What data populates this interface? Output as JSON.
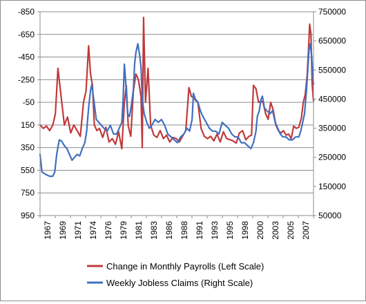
{
  "chart_data": {
    "type": "line",
    "title": "",
    "xlabel": "",
    "x_tick_labels": [
      "1967",
      "1969",
      "1971",
      "1974",
      "1976",
      "1979",
      "1981",
      "1983",
      "1986",
      "1988",
      "1991",
      "1993",
      "1995",
      "1998",
      "2000",
      "2003",
      "2005",
      "2007"
    ],
    "x_range": [
      1967.0,
      2009.8
    ],
    "left_axis": {
      "inverted": true,
      "range": [
        -850,
        950
      ],
      "ticks": [
        -850,
        -650,
        -450,
        -250,
        -50,
        150,
        350,
        550,
        750,
        950
      ],
      "tick_labels": [
        "-850",
        "-650",
        "-450",
        "-250",
        "-50",
        "150",
        "350",
        "550",
        "750",
        "950"
      ]
    },
    "right_axis": {
      "inverted": false,
      "range": [
        50000,
        750000
      ],
      "ticks": [
        750000,
        650000,
        550000,
        450000,
        350000,
        250000,
        150000,
        50000
      ],
      "tick_labels": [
        "750000",
        "650000",
        "550000",
        "450000",
        "350000",
        "250000",
        "150000",
        "50000"
      ]
    },
    "grid": "horizontal",
    "legend_position": "bottom",
    "series": [
      {
        "name": "Change in Monthly Payrolls (Left Scale)",
        "axis": "left",
        "color": "#c0393b",
        "x": [
          1967.0,
          1967.5,
          1968.0,
          1968.5,
          1969.0,
          1969.4,
          1969.8,
          1970.3,
          1970.8,
          1971.3,
          1971.8,
          1972.3,
          1972.8,
          1973.3,
          1973.8,
          1974.2,
          1974.6,
          1974.9,
          1975.2,
          1975.5,
          1975.9,
          1976.3,
          1976.8,
          1977.3,
          1977.8,
          1978.3,
          1978.8,
          1979.3,
          1979.8,
          1980.2,
          1980.5,
          1980.8,
          1981.2,
          1981.6,
          1982.0,
          1982.4,
          1982.8,
          1983.0,
          1983.2,
          1983.5,
          1983.9,
          1984.3,
          1984.8,
          1985.3,
          1985.8,
          1986.3,
          1986.8,
          1987.3,
          1987.8,
          1988.3,
          1988.8,
          1989.3,
          1989.8,
          1990.3,
          1990.7,
          1991.0,
          1991.3,
          1991.7,
          1992.2,
          1992.7,
          1993.2,
          1993.7,
          1994.2,
          1994.7,
          1995.2,
          1995.7,
          1996.2,
          1996.7,
          1997.2,
          1997.7,
          1998.2,
          1998.7,
          1999.2,
          1999.7,
          2000.1,
          2000.4,
          2000.8,
          2001.2,
          2001.6,
          2001.9,
          2002.3,
          2002.7,
          2003.1,
          2003.5,
          2003.9,
          2004.3,
          2004.7,
          2005.1,
          2005.5,
          2005.9,
          2006.3,
          2006.7,
          2007.1,
          2007.5,
          2007.9,
          2008.2,
          2008.5,
          2008.8,
          2009.0,
          2009.2,
          2009.4,
          2009.6,
          2009.8
        ],
        "y": [
          150,
          180,
          160,
          200,
          150,
          50,
          -350,
          -100,
          150,
          80,
          220,
          150,
          200,
          250,
          -50,
          -150,
          -550,
          -300,
          -200,
          150,
          200,
          180,
          260,
          170,
          300,
          270,
          320,
          210,
          360,
          -50,
          -200,
          160,
          250,
          -150,
          -300,
          -250,
          -100,
          350,
          -800,
          -50,
          -350,
          150,
          240,
          260,
          200,
          270,
          240,
          300,
          260,
          270,
          300,
          250,
          200,
          -180,
          -100,
          -100,
          -70,
          -50,
          180,
          250,
          270,
          250,
          290,
          230,
          300,
          210,
          270,
          280,
          290,
          310,
          220,
          200,
          280,
          250,
          240,
          -200,
          -170,
          -50,
          -60,
          -50,
          50,
          100,
          -50,
          20,
          150,
          200,
          220,
          200,
          240,
          230,
          270,
          160,
          180,
          170,
          90,
          -50,
          -120,
          -280,
          -500,
          -740,
          -650,
          -200,
          -60
        ]
      },
      {
        "name": "Weekly Jobless Claims (Right Scale)",
        "axis": "right",
        "color": "#3f6fbf",
        "x": [
          1967.0,
          1967.3,
          1967.6,
          1968.0,
          1968.5,
          1969.0,
          1969.3,
          1969.6,
          1970.0,
          1970.4,
          1970.8,
          1971.2,
          1971.6,
          1972.0,
          1972.4,
          1972.8,
          1973.2,
          1973.6,
          1974.0,
          1974.3,
          1974.6,
          1974.9,
          1975.1,
          1975.4,
          1975.8,
          1976.2,
          1976.6,
          1977.0,
          1977.5,
          1978.0,
          1978.5,
          1979.0,
          1979.4,
          1979.8,
          1980.0,
          1980.2,
          1980.4,
          1980.7,
          1981.0,
          1981.3,
          1981.6,
          1981.8,
          1982.0,
          1982.3,
          1982.6,
          1982.8,
          1983.0,
          1983.3,
          1983.7,
          1984.1,
          1984.5,
          1985.0,
          1985.5,
          1986.0,
          1986.5,
          1987.0,
          1987.5,
          1988.0,
          1988.5,
          1989.0,
          1989.5,
          1990.0,
          1990.4,
          1990.8,
          1991.0,
          1991.3,
          1991.7,
          1992.1,
          1992.5,
          1993.0,
          1993.5,
          1994.0,
          1994.5,
          1995.0,
          1995.5,
          1996.0,
          1996.5,
          1997.0,
          1997.5,
          1998.0,
          1998.5,
          1999.0,
          1999.5,
          2000.0,
          2000.4,
          2000.8,
          2001.0,
          2001.3,
          2001.6,
          2001.8,
          2002.1,
          2002.5,
          2003.0,
          2003.4,
          2003.8,
          2004.2,
          2004.6,
          2005.0,
          2005.5,
          2006.0,
          2006.5,
          2007.0,
          2007.5,
          2007.8,
          2008.1,
          2008.4,
          2008.7,
          2008.9,
          2009.1,
          2009.3,
          2009.5,
          2009.8
        ],
        "y": [
          260000,
          200000,
          195000,
          190000,
          185000,
          185000,
          200000,
          260000,
          310000,
          305000,
          290000,
          280000,
          260000,
          240000,
          250000,
          260000,
          255000,
          280000,
          300000,
          340000,
          420000,
          480000,
          500000,
          450000,
          380000,
          370000,
          360000,
          350000,
          340000,
          360000,
          330000,
          330000,
          350000,
          370000,
          450000,
          570000,
          510000,
          400000,
          390000,
          430000,
          480000,
          570000,
          610000,
          640000,
          600000,
          560000,
          450000,
          400000,
          370000,
          350000,
          360000,
          380000,
          370000,
          380000,
          360000,
          330000,
          320000,
          310000,
          300000,
          320000,
          330000,
          350000,
          340000,
          380000,
          470000,
          450000,
          440000,
          410000,
          390000,
          370000,
          350000,
          340000,
          340000,
          330000,
          370000,
          360000,
          350000,
          330000,
          320000,
          320000,
          300000,
          300000,
          290000,
          280000,
          300000,
          340000,
          390000,
          410000,
          450000,
          460000,
          420000,
          410000,
          400000,
          410000,
          370000,
          350000,
          330000,
          320000,
          320000,
          310000,
          310000,
          320000,
          320000,
          340000,
          370000,
          400000,
          480000,
          550000,
          620000,
          640000,
          600000,
          500000
        ]
      }
    ]
  }
}
